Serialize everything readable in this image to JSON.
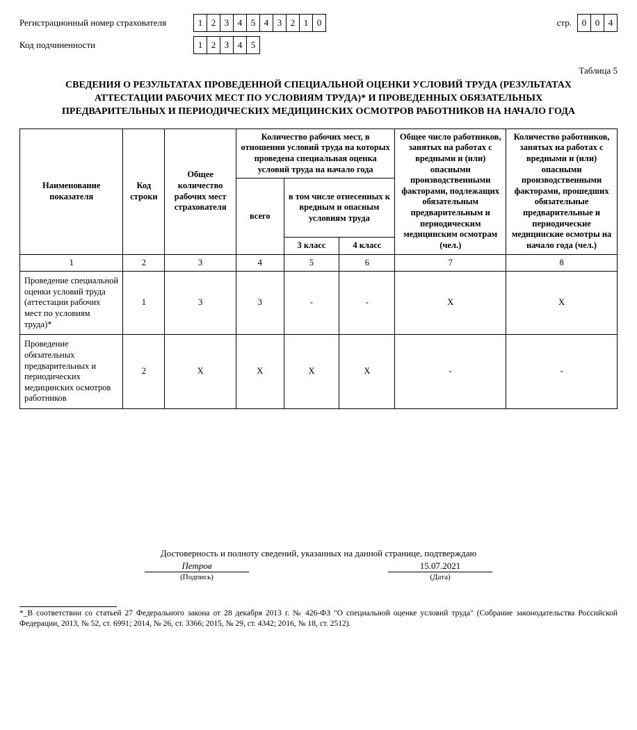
{
  "header": {
    "reg_label": "Регистрационный номер страхователя",
    "reg_digits": [
      "1",
      "2",
      "3",
      "4",
      "5",
      "4",
      "3",
      "2",
      "1",
      "0"
    ],
    "sub_label": "Код подчиненности",
    "sub_digits": [
      "1",
      "2",
      "3",
      "4",
      "5"
    ],
    "page_label": "стр.",
    "page_digits": [
      "0",
      "0",
      "4"
    ]
  },
  "table_label": "Таблица 5",
  "title": "СВЕДЕНИЯ О РЕЗУЛЬТАТАХ ПРОВЕДЕННОЙ СПЕЦИАЛЬНОЙ ОЦЕНКИ УСЛОВИЙ ТРУДА (РЕЗУЛЬТАТАХ АТТЕСТАЦИИ РАБОЧИХ МЕСТ ПО УСЛОВИЯМ ТРУДА)* И ПРОВЕДЕННЫХ ОБЯЗАТЕЛЬНЫХ ПРЕДВАРИТЕЛЬНЫХ И ПЕРИОДИЧЕСКИХ МЕДИЦИНСКИХ ОСМОТРОВ РАБОТНИКОВ НА НАЧАЛО ГОДА",
  "thead": {
    "c1": "Наименование показателя",
    "c2": "Код строки",
    "c3": "Общее количество рабочих мест страхователя",
    "c4_group": "Количество рабочих мест, в отношении условий труда на которых проведена специальная оценка условий труда на начало года",
    "c4": "всего",
    "c56_group": "в том числе отнесенных к вредным и опасным условиям труда",
    "c5": "3 класс",
    "c6": "4 класс",
    "c7": "Общее число работников, занятых на работах с вредными и (или) опасными производственными факторами, подлежащих обязательным предварительным и периодическим медицинским осмотрам (чел.)",
    "c8": "Количество работников, занятых на работах с вредными и (или) опасными производственными факторами, прошедших обязательные предварительные и периодические медицинские осмотры на начало года (чел.)"
  },
  "colnums": [
    "1",
    "2",
    "3",
    "4",
    "5",
    "6",
    "7",
    "8"
  ],
  "rows": [
    {
      "name": "Проведение специальной оценки условий труда (аттестации рабочих мест по условиям труда)*",
      "code": "1",
      "c3": "3",
      "c4": "3",
      "c5": "-",
      "c6": "-",
      "c7": "Х",
      "c8": "Х"
    },
    {
      "name": "Проведение обязательных предварительных и периодических медицинских осмотров работников",
      "code": "2",
      "c3": "Х",
      "c4": "Х",
      "c5": "Х",
      "c6": "Х",
      "c7": "-",
      "c8": "-"
    }
  ],
  "confirm": "Достоверность и полноту сведений, указанных на данной странице, подтверждаю",
  "signature": {
    "value": "Петров",
    "caption": "(Подпись)"
  },
  "date": {
    "value": "15.07.2021",
    "caption": "(Дата)"
  },
  "footnote": "*_В соответствии со статьей 27 Федерального закона от 28 декабря 2013 г. № 426-ФЗ \"О специальной оценке условий труда\" (Собрание законодательства Российской Федерации, 2013, № 52, ст. 6991; 2014, № 26, ст. 3366; 2015, № 29, ст. 4342; 2016, № 18, ст. 2512)."
}
